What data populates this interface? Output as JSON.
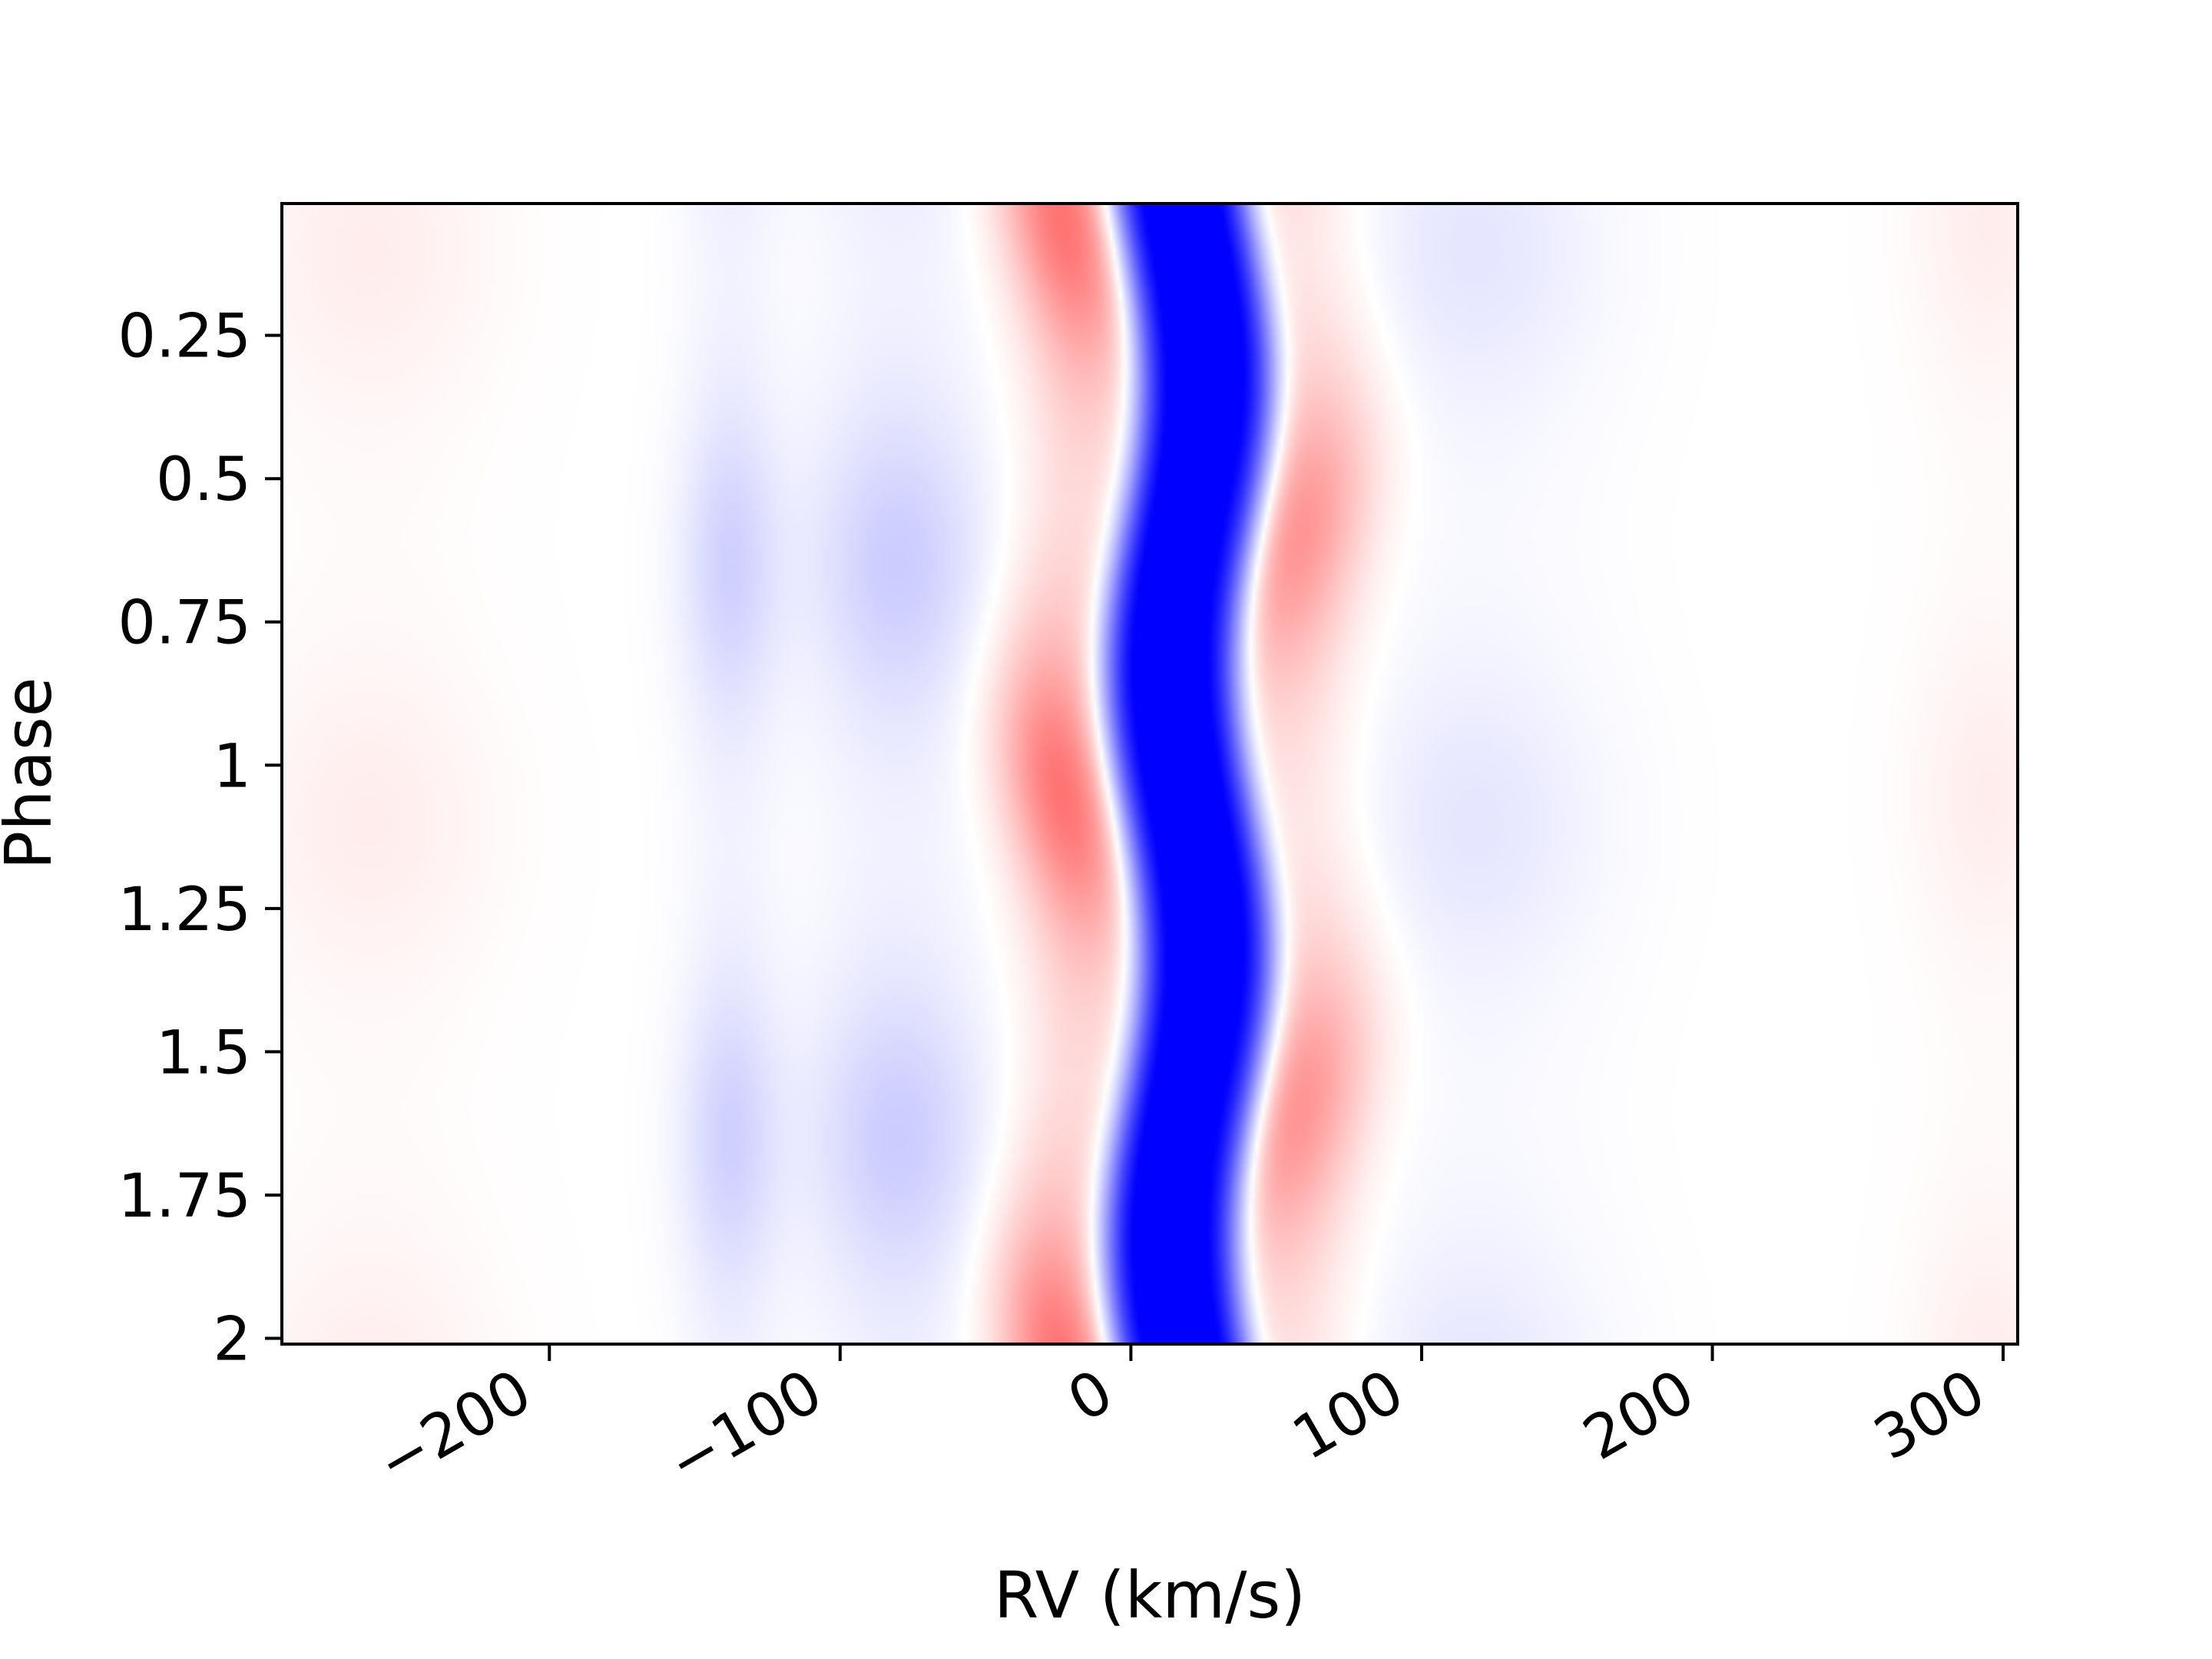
{
  "chart_data": {
    "type": "heatmap",
    "title": "",
    "xlabel": "RV (km/s)",
    "ylabel": "Phase",
    "xlim": [
      -292,
      305
    ],
    "ylim": [
      2.01,
      0.02
    ],
    "x_ticks": [
      -200,
      -100,
      0,
      100,
      200,
      300
    ],
    "x_tick_labels": [
      "−200",
      "−100",
      "0",
      "100",
      "200",
      "300"
    ],
    "y_ticks": [
      0.25,
      0.5,
      0.75,
      1,
      1.25,
      1.5,
      1.75,
      2
    ],
    "y_tick_labels": [
      "0.25",
      "0.5",
      "0.75",
      "1",
      "1.25",
      "1.5",
      "1.75",
      "2"
    ],
    "colormap": "bwr",
    "colors": {
      "negative": "#0000ff",
      "zero": "#ffffff",
      "positive": "#ff0000"
    },
    "grid": false,
    "legend": "none",
    "features": [
      {
        "kind": "absorption-core",
        "sign": -1,
        "center_rv_at_phase0": 20,
        "rv_semi_amplitude": 6,
        "width_rv": 20,
        "amplitude": 1.15
      },
      {
        "kind": "inner-lobe",
        "sign": 1,
        "center_rv": -22,
        "rv_semi_amplitude": 6,
        "width_rv": 14,
        "amplitude": 0.55,
        "peak_phases": [
          0.05,
          1.05
        ]
      },
      {
        "kind": "outer-lobe",
        "sign": 1,
        "center_rv": 58,
        "rv_semi_amplitude": 6,
        "width_rv": 16,
        "amplitude": 0.42,
        "peak_phases": [
          0.6,
          1.6
        ]
      },
      {
        "kind": "wing",
        "sign": -1,
        "center_rv": -80,
        "width_rv": 22,
        "amplitude": 0.2,
        "peak_phases": [
          0.65,
          1.65
        ]
      },
      {
        "kind": "wing",
        "sign": -1,
        "center_rv": -138,
        "width_rv": 12,
        "amplitude": 0.18,
        "peak_phases": [
          0.65,
          1.65
        ]
      },
      {
        "kind": "wing",
        "sign": -1,
        "center_rv": 118,
        "width_rv": 30,
        "amplitude": 0.1,
        "peak_phases": [
          0.1,
          1.1
        ]
      },
      {
        "kind": "wing",
        "sign": 1,
        "center_rv": -262,
        "width_rv": 30,
        "amplitude": 0.07,
        "peak_phases": [
          0.1,
          1.1
        ]
      },
      {
        "kind": "wing",
        "sign": 1,
        "center_rv": 295,
        "width_rv": 18,
        "amplitude": 0.07,
        "peak_phases": [
          0.05,
          1.05
        ]
      }
    ]
  }
}
